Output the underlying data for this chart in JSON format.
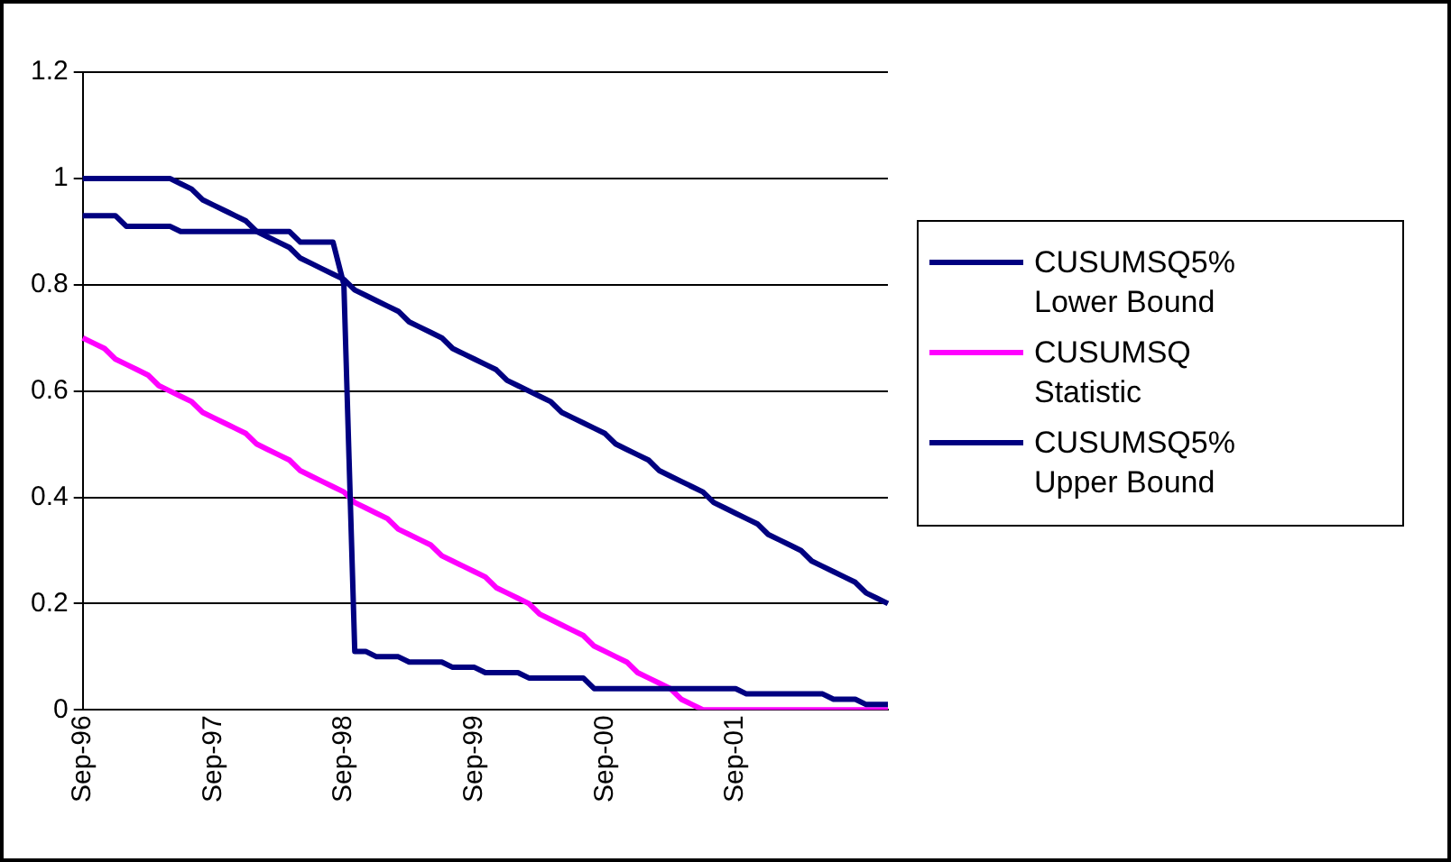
{
  "chart_data": {
    "type": "line",
    "categories": [
      "Sep-96",
      null,
      null,
      null,
      null,
      null,
      null,
      null,
      null,
      null,
      null,
      null,
      "Sep-97",
      null,
      null,
      null,
      null,
      null,
      null,
      null,
      null,
      null,
      null,
      null,
      "Sep-98",
      null,
      null,
      null,
      null,
      null,
      null,
      null,
      null,
      null,
      null,
      null,
      "Sep-99",
      null,
      null,
      null,
      null,
      null,
      null,
      null,
      null,
      null,
      null,
      null,
      "Sep-00",
      null,
      null,
      null,
      null,
      null,
      null,
      null,
      null,
      null,
      null,
      null,
      "Sep-01",
      null,
      null,
      null,
      null,
      null,
      null,
      null,
      null,
      null,
      null,
      null,
      null,
      null,
      null
    ],
    "series": [
      {
        "name": "CUSUMSQ5% Lower Bound",
        "color": "#000080",
        "values": [
          0.93,
          0.93,
          0.93,
          0.93,
          0.91,
          0.91,
          0.91,
          0.91,
          0.91,
          0.9,
          0.9,
          0.9,
          0.9,
          0.9,
          0.9,
          0.9,
          0.9,
          0.9,
          0.9,
          0.9,
          0.88,
          0.88,
          0.88,
          0.88,
          0.8,
          0.11,
          0.11,
          0.1,
          0.1,
          0.1,
          0.09,
          0.09,
          0.09,
          0.09,
          0.08,
          0.08,
          0.08,
          0.07,
          0.07,
          0.07,
          0.07,
          0.06,
          0.06,
          0.06,
          0.06,
          0.06,
          0.06,
          0.04,
          0.04,
          0.04,
          0.04,
          0.04,
          0.04,
          0.04,
          0.04,
          0.04,
          0.04,
          0.04,
          0.04,
          0.04,
          0.04,
          0.03,
          0.03,
          0.03,
          0.03,
          0.03,
          0.03,
          0.03,
          0.03,
          0.02,
          0.02,
          0.02,
          0.01,
          0.01,
          0.01
        ]
      },
      {
        "name": "CUSUMSQ Statistic",
        "color": "#ff00ff",
        "values": [
          0.7,
          0.69,
          0.68,
          0.66,
          0.65,
          0.64,
          0.63,
          0.61,
          0.6,
          0.59,
          0.58,
          0.56,
          0.55,
          0.54,
          0.53,
          0.52,
          0.5,
          0.49,
          0.48,
          0.47,
          0.45,
          0.44,
          0.43,
          0.42,
          0.41,
          0.39,
          0.38,
          0.37,
          0.36,
          0.34,
          0.33,
          0.32,
          0.31,
          0.29,
          0.28,
          0.27,
          0.26,
          0.25,
          0.23,
          0.22,
          0.21,
          0.2,
          0.18,
          0.17,
          0.16,
          0.15,
          0.14,
          0.12,
          0.11,
          0.1,
          0.09,
          0.07,
          0.06,
          0.05,
          0.04,
          0.02,
          0.01,
          0,
          0,
          0,
          0,
          0,
          0,
          0,
          0,
          0,
          0,
          0,
          0,
          0,
          0,
          0,
          0,
          0,
          0
        ]
      },
      {
        "name": "CUSUMSQ5% Upper Bound",
        "color": "#000080",
        "values": [
          1,
          1,
          1,
          1,
          1,
          1,
          1,
          1,
          1,
          0.99,
          0.98,
          0.96,
          0.95,
          0.94,
          0.93,
          0.92,
          0.9,
          0.89,
          0.88,
          0.87,
          0.85,
          0.84,
          0.83,
          0.82,
          0.81,
          0.79,
          0.78,
          0.77,
          0.76,
          0.75,
          0.73,
          0.72,
          0.71,
          0.7,
          0.68,
          0.67,
          0.66,
          0.65,
          0.64,
          0.62,
          0.61,
          0.6,
          0.59,
          0.58,
          0.56,
          0.55,
          0.54,
          0.53,
          0.52,
          0.5,
          0.49,
          0.48,
          0.47,
          0.45,
          0.44,
          0.43,
          0.42,
          0.41,
          0.39,
          0.38,
          0.37,
          0.36,
          0.35,
          0.33,
          0.32,
          0.31,
          0.3,
          0.28,
          0.27,
          0.26,
          0.25,
          0.24,
          0.22,
          0.21,
          0.2
        ]
      }
    ],
    "ylim": [
      0,
      1.2
    ],
    "yticks": [
      0,
      0.2,
      0.4,
      0.6,
      0.8,
      1,
      1.2
    ],
    "grid": "y",
    "legend": "right",
    "marker": "none",
    "line_style": "solid"
  }
}
